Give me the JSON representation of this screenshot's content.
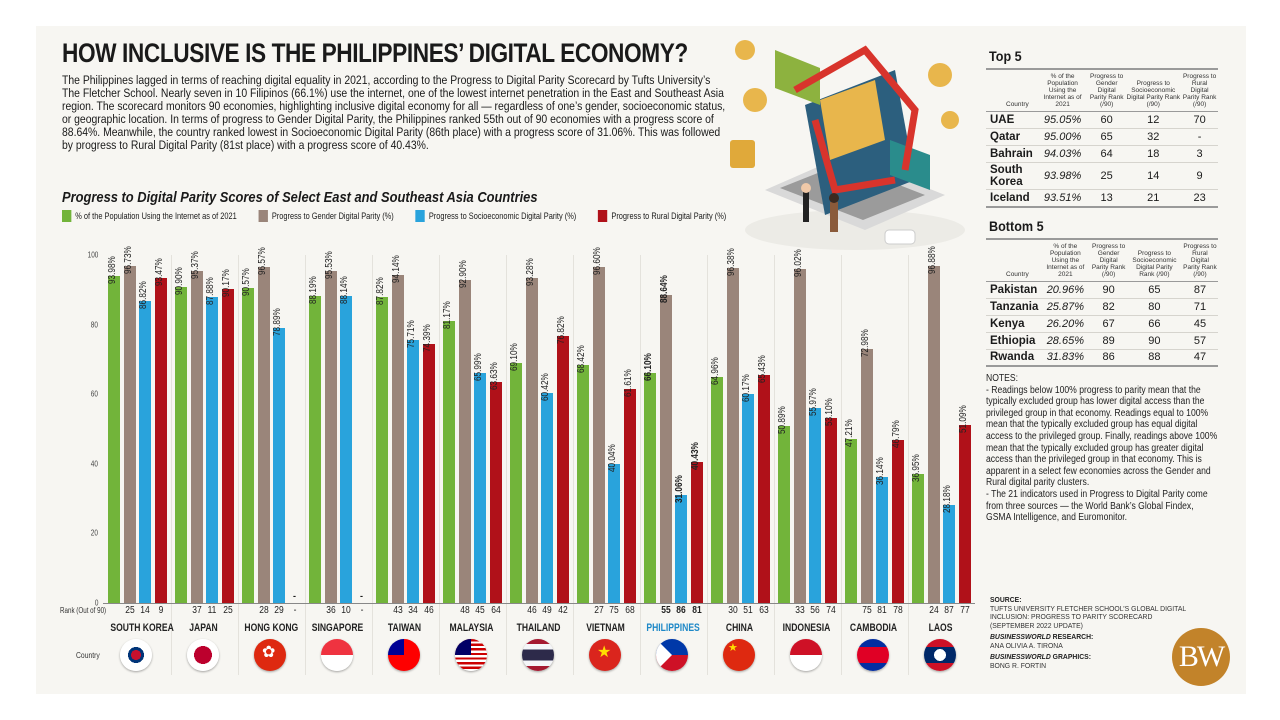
{
  "header": {
    "title": "HOW INCLUSIVE IS THE PHILIPPINES’ DIGITAL ECONOMY?",
    "intro": "The Philippines lagged in terms of reaching digital equality in 2021, according to the Progress to Digital Parity Scorecard by Tufts University’s The Fletcher School. Nearly seven in 10 Filipinos (66.1%) use the internet, one of the lowest internet penetration in the East and Southeast Asia region. The scorecard monitors 90 economies, highlighting inclusive digital economy for all — regardless of one’s gender, socioeconomic status, or geographic location. In terms of progress to Gender Digital Parity, the Philippines ranked 55th out of 90 economies with a progress score of 88.64%. Meanwhile, the country ranked lowest in Socioeconomic Digital Parity (86th place) with a progress score of 31.06%. This was followed by progress to Rural Digital Parity (81st place) with a progress score of 40.43%."
  },
  "colors": {
    "internet": "#72b43a",
    "gender": "#9a857a",
    "socioeconomic": "#29a3dc",
    "rural": "#b01119",
    "highlight": "#1e88c7",
    "logo": "#c2832a"
  },
  "chart_data": {
    "type": "bar",
    "title": "Progress to Digital Parity Scores of Select East and Southeast Asia Countries",
    "xlabel": "Country",
    "ylabel": "",
    "ylim": [
      0,
      100
    ],
    "yticks": [
      0,
      20,
      40,
      60,
      80,
      100
    ],
    "grid": false,
    "legend_position": "top",
    "categories": [
      "SOUTH KOREA",
      "JAPAN",
      "HONG KONG",
      "SINGAPORE",
      "TAIWAN",
      "MALAYSIA",
      "THAILAND",
      "VIETNAM",
      "PHILIPPINES",
      "CHINA",
      "INDONESIA",
      "CAMBODIA",
      "LAOS"
    ],
    "series": [
      {
        "name": "% of the Population Using the Internet as of 2021",
        "values": [
          93.98,
          90.9,
          90.57,
          88.19,
          87.82,
          81.17,
          69.1,
          68.42,
          66.1,
          64.96,
          50.89,
          47.21,
          36.95
        ]
      },
      {
        "name": "Progress to Gender Digital Parity (%)",
        "values": [
          96.73,
          95.37,
          96.57,
          95.53,
          94.14,
          92.9,
          93.28,
          96.6,
          88.64,
          96.38,
          96.02,
          72.98,
          96.88
        ]
      },
      {
        "name": "Progress to Socioeconomic Digital Parity (%)",
        "values": [
          86.82,
          87.88,
          78.89,
          88.14,
          75.71,
          65.99,
          60.42,
          40.04,
          31.06,
          60.17,
          55.97,
          36.14,
          28.18
        ]
      },
      {
        "name": "Progress to Rural Digital Parity (%)",
        "values": [
          93.47,
          90.17,
          null,
          null,
          74.39,
          63.63,
          76.82,
          61.61,
          40.43,
          65.43,
          53.1,
          46.79,
          51.09
        ]
      }
    ],
    "ranks_out_of_90": {
      "gender": [
        25,
        37,
        28,
        36,
        43,
        48,
        46,
        27,
        55,
        30,
        33,
        75,
        24
      ],
      "socioeconomic": [
        14,
        11,
        29,
        10,
        34,
        45,
        49,
        75,
        86,
        51,
        56,
        81,
        87
      ],
      "rural": [
        "9",
        "25",
        "-",
        "-",
        "46",
        "64",
        "42",
        "68",
        "81",
        "63",
        "74",
        "78",
        "77"
      ]
    },
    "highlighted_category": "PHILIPPINES"
  },
  "chart": {
    "title": "Progress to Digital Parity Scores of Select East and Southeast Asia Countries",
    "legend": [
      "% of the Population Using the Internet as of 2021",
      "Progress to Gender Digital Parity (%)",
      "Progress to Socioeconomic Digital Parity (%)",
      "Progress to Rural Digital Parity (%)"
    ],
    "rank_caption": "Rank (Out of 90)",
    "country_caption": "Country",
    "missing_marker": "-"
  },
  "top5": {
    "title": "Top 5",
    "headers": [
      "Country",
      "% of the Population Using the Internet as of 2021",
      "Progress to Gender Digital Parity Rank (/90)",
      "Progress to Socioeconomic Digital Parity Rank (/90)",
      "Progress to Rural Digital Parity Rank (/90)"
    ],
    "rows": [
      [
        "UAE",
        "95.05%",
        "60",
        "12",
        "70"
      ],
      [
        "Qatar",
        "95.00%",
        "65",
        "32",
        "-"
      ],
      [
        "Bahrain",
        "94.03%",
        "64",
        "18",
        "3"
      ],
      [
        "South Korea",
        "93.98%",
        "25",
        "14",
        "9"
      ],
      [
        "Iceland",
        "93.51%",
        "13",
        "21",
        "23"
      ]
    ]
  },
  "bottom5": {
    "title": "Bottom 5",
    "headers": [
      "Country",
      "% of the Population Using the Internet as of 2021",
      "Progress to Gender Digital Parity Rank (/90)",
      "Progress to Socioeconomic Digital Parity Rank (/90)",
      "Progress to Rural Digital Parity Rank (/90)"
    ],
    "rows": [
      [
        "Pakistan",
        "20.96%",
        "90",
        "65",
        "87"
      ],
      [
        "Tanzania",
        "25.87%",
        "82",
        "80",
        "71"
      ],
      [
        "Kenya",
        "26.20%",
        "67",
        "66",
        "45"
      ],
      [
        "Ethiopia",
        "28.65%",
        "89",
        "90",
        "57"
      ],
      [
        "Rwanda",
        "31.83%",
        "86",
        "88",
        "47"
      ]
    ]
  },
  "notes": {
    "heading": "NOTES:",
    "items": [
      "- Readings below 100% progress to parity mean that the typically excluded group has lower digital access than the privileged group in that economy. Readings equal to 100% mean that the typically excluded group has equal digital access to the privileged group. Finally, readings above 100% mean that the typically excluded group has greater digital access than the privileged group in that economy. This is apparent in a select few economies across the Gender and Rural digital parity clusters.",
      "- The 21 indicators used in Progress to Digital Parity come from three sources — the World Bank’s Global Findex, GSMA Intelligence, and Euromonitor."
    ]
  },
  "credits": {
    "source_label": "SOURCE:",
    "source_text": "TUFTS UNIVERSITY FLETCHER SCHOOL’S GLOBAL DIGITAL INCLUSION: PROGRESS TO PARITY SCORECARD (SEPTEMBER 2022 UPDATE)",
    "research_label_italic": "BUSINESSWORLD",
    "research_label_rest": " RESEARCH:",
    "research_name": "ANA OLIVIA A. TIRONA",
    "graphics_label_italic": "BUSINESSWORLD",
    "graphics_label_rest": " GRAPHICS:",
    "graphics_name": "BONG R. FORTIN",
    "logo_text": "BW"
  }
}
